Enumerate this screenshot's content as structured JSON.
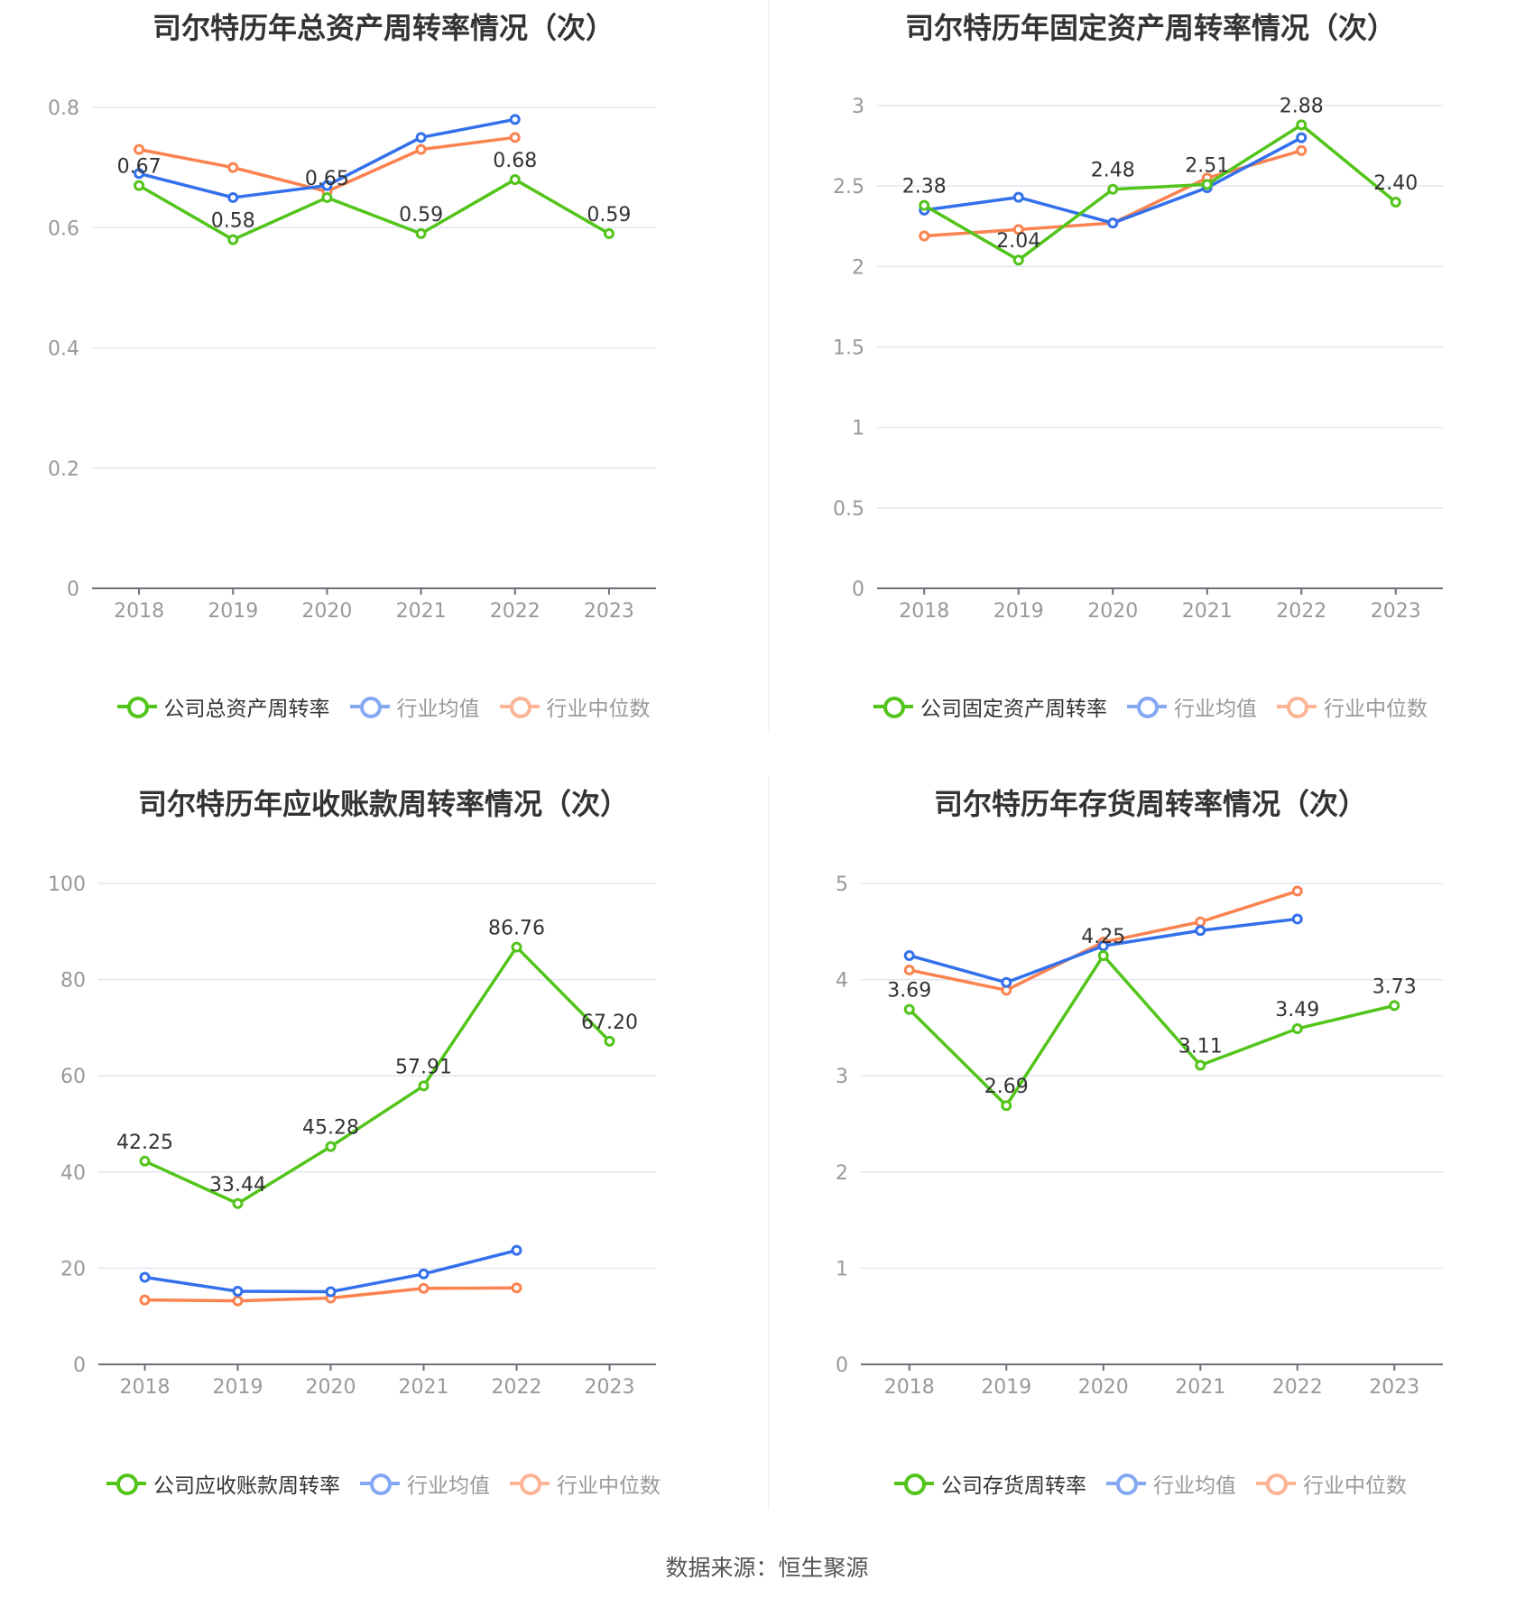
{
  "colors": {
    "company": "#52c41a",
    "industry_avg": "#3370eb",
    "industry_median": "#fa8350"
  },
  "source": "数据来源：恒生聚源",
  "chart_data": [
    {
      "type": "line",
      "title": "司尔特历年总资产周转率情况（次）",
      "categories": [
        "2018",
        "2019",
        "2020",
        "2021",
        "2022",
        "2023"
      ],
      "ylim": [
        0,
        0.8
      ],
      "yticks": [
        "0",
        "0.2",
        "0.4",
        "0.6",
        "0.8"
      ],
      "ytick_values": [
        0,
        0.2,
        0.4,
        0.6,
        0.8
      ],
      "grid": true,
      "legend_position": "bottom",
      "series": [
        {
          "name": "公司总资产周转率",
          "values": [
            0.67,
            0.58,
            0.65,
            0.59,
            0.68,
            0.59
          ],
          "labels": [
            "0.67",
            "0.58",
            "0.65",
            "0.59",
            "0.68",
            "0.59"
          ]
        },
        {
          "name": "行业均值",
          "values": [
            0.69,
            0.65,
            0.67,
            0.75,
            0.78,
            null
          ]
        },
        {
          "name": "行业中位数",
          "values": [
            0.73,
            0.7,
            0.66,
            0.73,
            0.75,
            null
          ]
        }
      ]
    },
    {
      "type": "line",
      "title": "司尔特历年固定资产周转率情况（次）",
      "categories": [
        "2018",
        "2019",
        "2020",
        "2021",
        "2022",
        "2023"
      ],
      "ylim": [
        0,
        3
      ],
      "yticks": [
        "0",
        "0.5",
        "1",
        "1.5",
        "2",
        "2.5",
        "3"
      ],
      "ytick_values": [
        0,
        0.5,
        1,
        1.5,
        2,
        2.5,
        3
      ],
      "grid": true,
      "legend_position": "bottom",
      "series": [
        {
          "name": "公司固定资产周转率",
          "values": [
            2.38,
            2.04,
            2.48,
            2.51,
            2.88,
            2.4
          ],
          "labels": [
            "2.38",
            "2.04",
            "2.48",
            "2.51",
            "2.88",
            "2.40"
          ]
        },
        {
          "name": "行业均值",
          "values": [
            2.35,
            2.43,
            2.27,
            2.49,
            2.8,
            null
          ]
        },
        {
          "name": "行业中位数",
          "values": [
            2.19,
            2.23,
            2.27,
            2.55,
            2.72,
            null
          ]
        }
      ]
    },
    {
      "type": "line",
      "title": "司尔特历年应收账款周转率情况（次）",
      "categories": [
        "2018",
        "2019",
        "2020",
        "2021",
        "2022",
        "2023"
      ],
      "ylim": [
        0,
        100
      ],
      "yticks": [
        "0",
        "20",
        "40",
        "60",
        "80",
        "100"
      ],
      "ytick_values": [
        0,
        20,
        40,
        60,
        80,
        100
      ],
      "grid": true,
      "legend_position": "bottom",
      "series": [
        {
          "name": "公司应收账款周转率",
          "values": [
            42.25,
            33.44,
            45.28,
            57.91,
            86.76,
            67.2
          ],
          "labels": [
            "42.25",
            "33.44",
            "45.28",
            "57.91",
            "86.76",
            "67.20"
          ]
        },
        {
          "name": "行业均值",
          "values": [
            18.1,
            15.2,
            15.1,
            18.8,
            23.7,
            null
          ]
        },
        {
          "name": "行业中位数",
          "values": [
            13.4,
            13.2,
            13.8,
            15.8,
            15.9,
            null
          ]
        }
      ]
    },
    {
      "type": "line",
      "title": "司尔特历年存货周转率情况（次）",
      "categories": [
        "2018",
        "2019",
        "2020",
        "2021",
        "2022",
        "2023"
      ],
      "ylim": [
        0,
        5
      ],
      "yticks": [
        "0",
        "1",
        "2",
        "3",
        "4",
        "5"
      ],
      "ytick_values": [
        0,
        1,
        2,
        3,
        4,
        5
      ],
      "grid": true,
      "legend_position": "bottom",
      "series": [
        {
          "name": "公司存货周转率",
          "values": [
            3.69,
            2.69,
            4.25,
            3.11,
            3.49,
            3.73
          ],
          "labels": [
            "3.69",
            "2.69",
            "4.25",
            "3.11",
            "3.49",
            "3.73"
          ]
        },
        {
          "name": "行业均值",
          "values": [
            4.25,
            3.97,
            4.35,
            4.51,
            4.63,
            null
          ]
        },
        {
          "name": "行业中位数",
          "values": [
            4.1,
            3.89,
            4.39,
            4.6,
            4.92,
            null
          ]
        }
      ]
    }
  ]
}
